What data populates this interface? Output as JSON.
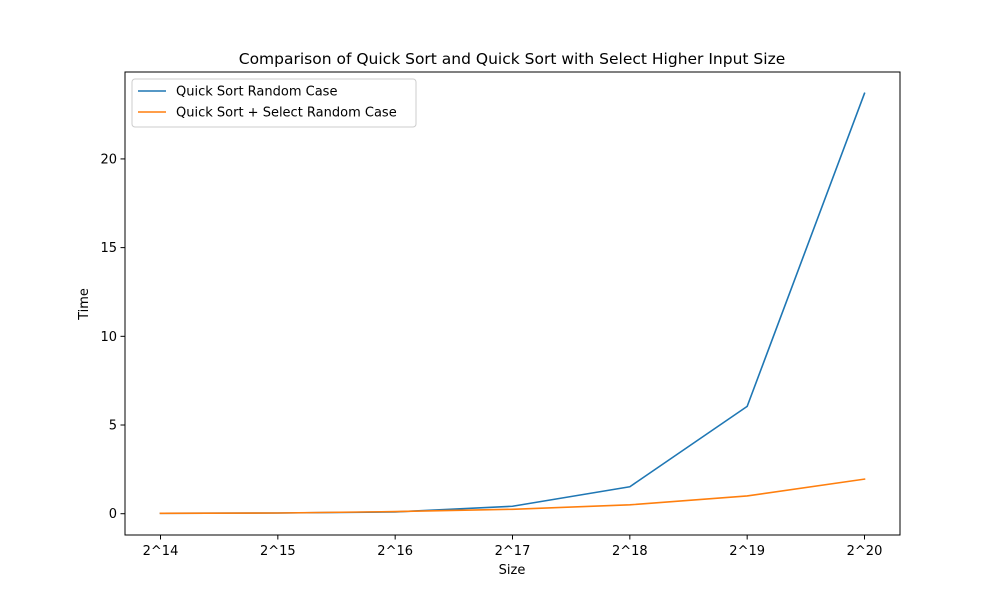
{
  "chart_data": {
    "type": "line",
    "title": "Comparison of Quick Sort and Quick Sort with Select Higher Input Size",
    "xlabel": "Size",
    "ylabel": "Time",
    "categories": [
      "2^14",
      "2^15",
      "2^16",
      "2^17",
      "2^18",
      "2^19",
      "2^20"
    ],
    "yticks": [
      0,
      5,
      10,
      15,
      20
    ],
    "ylim": [
      -1.2,
      24.9
    ],
    "grid": false,
    "legend_position": "top-left",
    "series": [
      {
        "name": "Quick Sort Random Case",
        "color": "#1f77b4",
        "values": [
          0.02,
          0.04,
          0.1,
          0.42,
          1.52,
          6.05,
          23.7
        ]
      },
      {
        "name": "Quick Sort + Select Random Case",
        "color": "#ff7f0e",
        "values": [
          0.02,
          0.04,
          0.12,
          0.25,
          0.5,
          1.0,
          1.95
        ]
      }
    ]
  }
}
